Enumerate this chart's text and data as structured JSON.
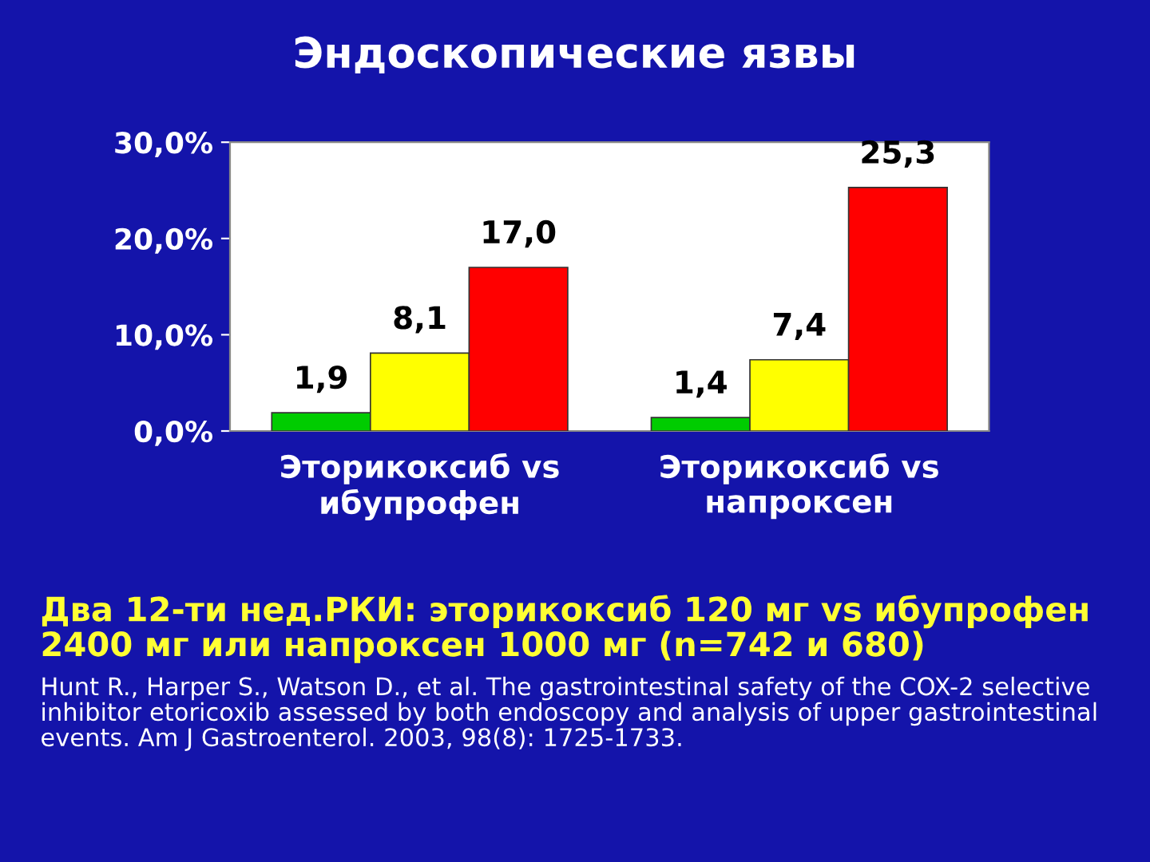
{
  "chart_data": {
    "type": "bar",
    "title": "Эндоскопические язвы",
    "categories": [
      "Эторикоксиб vs\nибупрофен",
      "Эторикоксиб vs\nнапроксен"
    ],
    "series": [
      {
        "color": "#00cc00",
        "values": [
          1.9,
          1.4
        ],
        "value_labels": [
          "1,9",
          "1,4"
        ]
      },
      {
        "color": "#ffff00",
        "values": [
          8.1,
          7.4
        ],
        "value_labels": [
          "8,1",
          "7,4"
        ]
      },
      {
        "color": "#ff0000",
        "values": [
          17.0,
          25.3
        ],
        "value_labels": [
          "17,0",
          "25,3"
        ]
      }
    ],
    "ylim": [
      0,
      30
    ],
    "yticks": [
      {
        "value": 0,
        "label": "0,0%"
      },
      {
        "value": 10,
        "label": "10,0%"
      },
      {
        "value": 20,
        "label": "20,0%"
      },
      {
        "value": 30,
        "label": "30,0%"
      }
    ],
    "annotations": [
      "Два 12-ти нед.РКИ: эторикоксиб 120 мг vs ибупрофен 2400 мг или напроксен 1000 мг (n=742 и 680)",
      "Hunt R., Harper S., Watson D., et al. The gastrointestinal safety of the COX-2 selective inhibitor etoricoxib assessed by both endoscopy and analysis of upper gastrointestinal events. Am J Gastroenterol. 2003, 98(8): 1725-1733."
    ]
  }
}
